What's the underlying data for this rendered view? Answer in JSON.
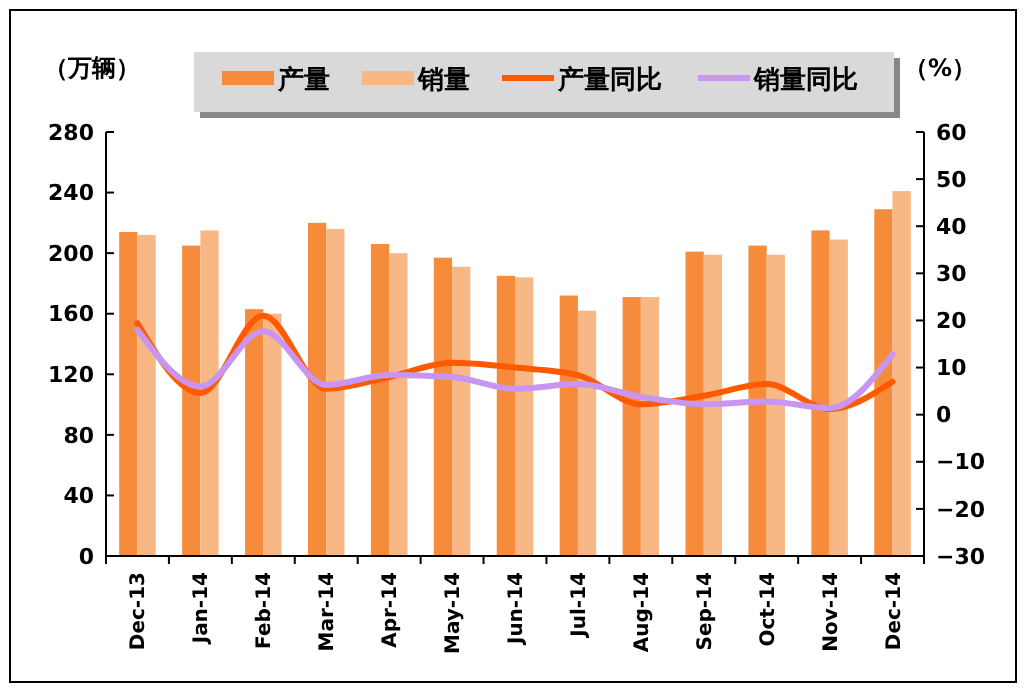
{
  "chart_data": {
    "type": "bar",
    "ylabel": "（万辆）",
    "y2label": "（%）",
    "categories": [
      "Dec-13",
      "Jan-14",
      "Feb-14",
      "Mar-14",
      "Apr-14",
      "May-14",
      "Jun-14",
      "Jul-14",
      "Aug-14",
      "Sep-14",
      "Oct-14",
      "Nov-14",
      "Dec-14"
    ],
    "series": [
      {
        "name": "产量",
        "color": "#f78b3c",
        "values": [
          214,
          205,
          163,
          220,
          206,
          197,
          185,
          172,
          171,
          201,
          205,
          215,
          229
        ]
      },
      {
        "name": "销量",
        "color": "#f8b886",
        "values": [
          212,
          215,
          160,
          216,
          200,
          191,
          184,
          162,
          171,
          199,
          199,
          209,
          241
        ]
      },
      {
        "name": "产量同比",
        "type": "line",
        "axis": "y2",
        "color": "#ff5a00",
        "values": [
          19.4,
          4.6,
          21,
          5.5,
          8,
          11,
          10,
          8.4,
          2.2,
          4,
          6.5,
          1.2,
          7
        ]
      },
      {
        "name": "销量同比",
        "type": "line",
        "axis": "y2",
        "color": "#c896f0",
        "values": [
          18,
          6,
          17.7,
          6.3,
          8.4,
          8,
          5.5,
          6.5,
          3.8,
          2.2,
          2.8,
          1.4,
          12.8
        ]
      }
    ],
    "ylim": [
      0,
      280
    ],
    "yticks": [
      0,
      40,
      80,
      120,
      160,
      200,
      240,
      280
    ],
    "y2lim": [
      -30,
      60
    ],
    "y2ticks": [
      -30,
      -20,
      -10,
      0,
      10,
      20,
      30,
      40,
      50,
      60
    ],
    "grid": false,
    "legend": "top"
  }
}
